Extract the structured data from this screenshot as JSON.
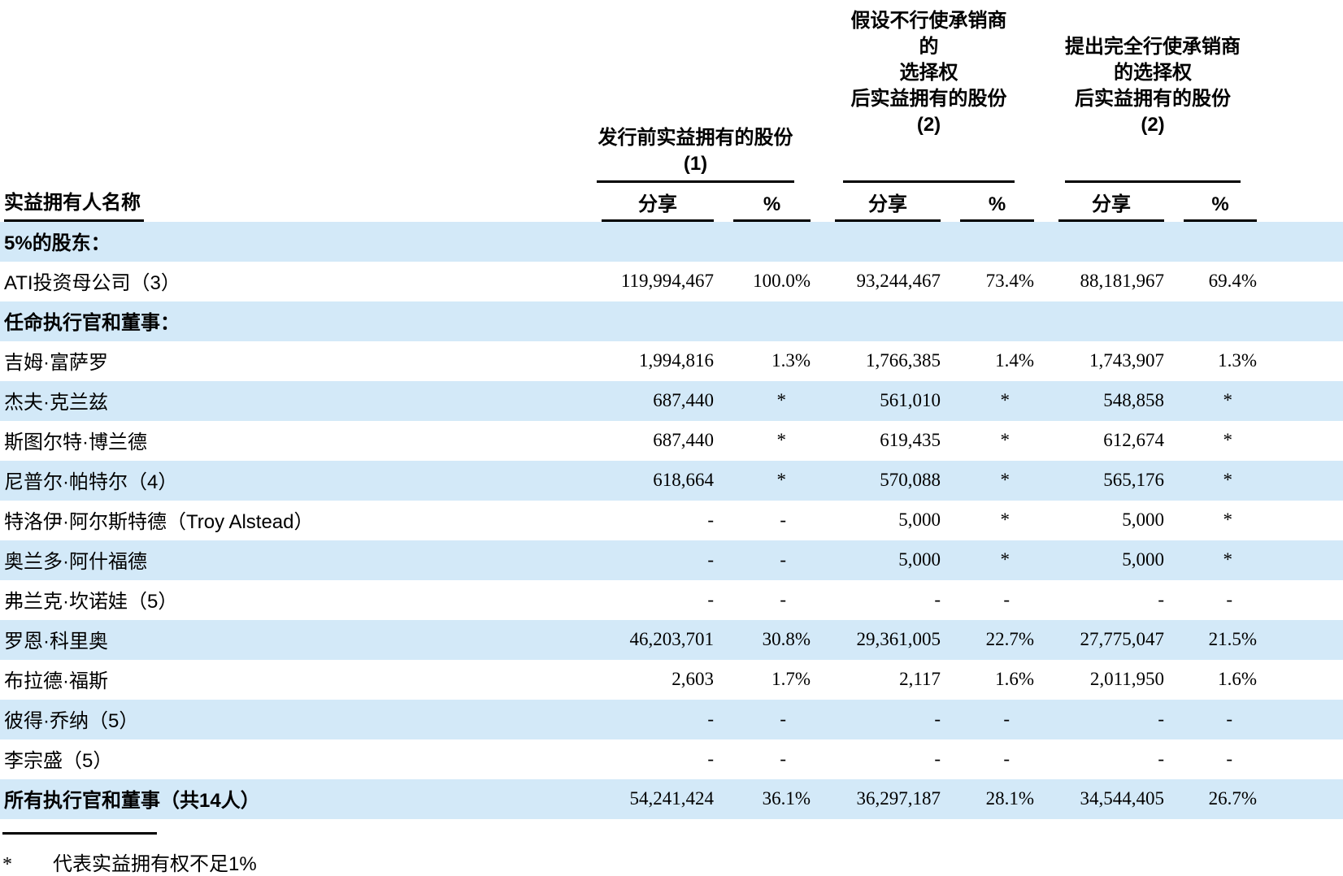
{
  "table": {
    "name_header": "实益拥有人名称",
    "groups": [
      {
        "id": "pre-offering",
        "title_lines": [
          "发行前实益拥有的股份",
          "(1)"
        ]
      },
      {
        "id": "no-exercise",
        "title_lines": [
          "假设不行使承销商的",
          "选择权",
          "后实益拥有的股份",
          "(2)"
        ]
      },
      {
        "id": "full-exercise",
        "title_lines": [
          "提出完全行使承销商",
          "的选择权",
          "后实益拥有的股份",
          "(2)"
        ]
      }
    ],
    "sub_headers": {
      "shares": "分享",
      "percent": "%"
    },
    "rows": [
      {
        "name": "5%的股东：",
        "type": "section",
        "cells": [
          "",
          "",
          "",
          "",
          "",
          ""
        ]
      },
      {
        "name": "ATI投资母公司（3）",
        "type": "normal",
        "cells": [
          "119,994,467",
          "100.0%",
          "93,244,467",
          "73.4%",
          "88,181,967",
          "69.4%"
        ]
      },
      {
        "name": "任命执行官和董事：",
        "type": "section",
        "cells": [
          "",
          "",
          "",
          "",
          "",
          ""
        ]
      },
      {
        "name": "吉姆·富萨罗",
        "type": "normal",
        "cells": [
          "1,994,816",
          "1.3%",
          "1,766,385",
          "1.4%",
          "1,743,907",
          "1.3%"
        ]
      },
      {
        "name": "杰夫·克兰兹",
        "type": "normal",
        "cells": [
          "687,440",
          "*",
          "561,010",
          "*",
          "548,858",
          "*"
        ]
      },
      {
        "name": "斯图尔特·博兰德",
        "type": "normal",
        "cells": [
          "687,440",
          "*",
          "619,435",
          "*",
          "612,674",
          "*"
        ]
      },
      {
        "name": "尼普尔·帕特尔（4）",
        "type": "normal",
        "cells": [
          "618,664",
          "*",
          "570,088",
          "*",
          "565,176",
          "*"
        ]
      },
      {
        "name": "特洛伊·阿尔斯特德（Troy Alstead）",
        "type": "normal",
        "cells": [
          "-",
          "-",
          "5,000",
          "*",
          "5,000",
          "*"
        ]
      },
      {
        "name": "奥兰多·阿什福德",
        "type": "normal",
        "cells": [
          "-",
          "-",
          "5,000",
          "*",
          "5,000",
          "*"
        ]
      },
      {
        "name": "弗兰克·坎诺娃（5）",
        "type": "normal",
        "cells": [
          "-",
          "-",
          "-",
          "-",
          "-",
          "-"
        ]
      },
      {
        "name": "罗恩·科里奥",
        "type": "normal",
        "cells": [
          "46,203,701",
          "30.8%",
          "29,361,005",
          "22.7%",
          "27,775,047",
          "21.5%"
        ]
      },
      {
        "name": "布拉德·福斯",
        "type": "normal",
        "cells": [
          "2,603",
          "1.7%",
          "2,117",
          "1.6%",
          "2,011,950",
          "1.6%"
        ]
      },
      {
        "name": "彼得·乔纳（5）",
        "type": "normal",
        "cells": [
          "-",
          "-",
          "-",
          "-",
          "-",
          "-"
        ]
      },
      {
        "name": "李宗盛（5）",
        "type": "normal",
        "cells": [
          "-",
          "-",
          "-",
          "-",
          "-",
          "-"
        ]
      },
      {
        "name": "所有执行官和董事（共14人）",
        "type": "total",
        "cells": [
          "54,241,424",
          "36.1%",
          "36,297,187",
          "28.1%",
          "34,544,405",
          "26.7%"
        ]
      }
    ],
    "footnote": {
      "marker": "*",
      "text": "代表实益拥有权不足1%"
    }
  },
  "colors": {
    "stripe": "#d3e9f8",
    "text": "#000000",
    "rule": "#000000"
  }
}
